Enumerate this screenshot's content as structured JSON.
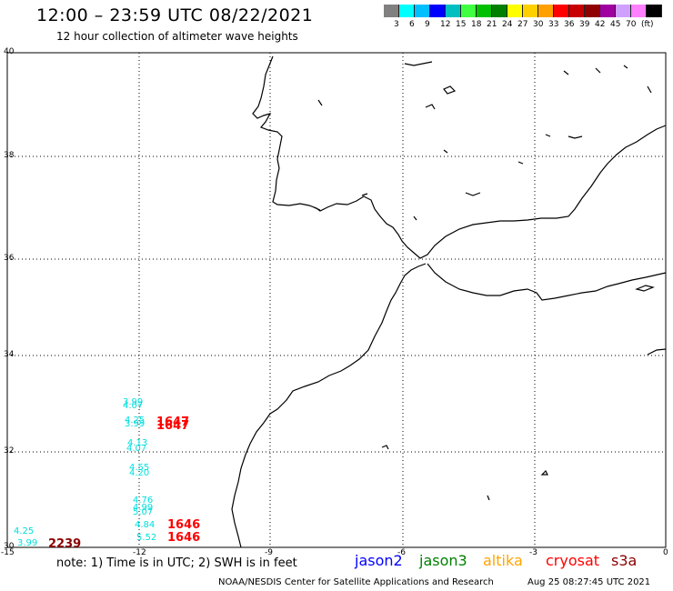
{
  "title": "12:00 – 23:59 UTC 08/22/2021",
  "subtitle": "12 hour collection of altimeter wave heights",
  "colorbar": {
    "colors": [
      "#808080",
      "#00ffff",
      "#00bfff",
      "#0000ff",
      "#00bfbf",
      "#40ff40",
      "#00c000",
      "#008000",
      "#ffff00",
      "#ffd000",
      "#ffa000",
      "#ff0000",
      "#c80000",
      "#900000",
      "#a000a0",
      "#d0a0ff",
      "#ff80ff",
      "#000000"
    ],
    "labels": [
      "3",
      "6",
      "9",
      "12",
      "15",
      "18",
      "21",
      "24",
      "27",
      "30",
      "33",
      "36",
      "39",
      "42",
      "45",
      "70",
      "(ft)"
    ]
  },
  "axes": {
    "lat_labels": [
      "40",
      "38",
      "36",
      "34",
      "32",
      "30"
    ],
    "lon_labels": [
      "-15",
      "-12",
      "-9",
      "-6",
      "-3",
      "0"
    ]
  },
  "observations": [
    {
      "text": "3.99",
      "color": "#00dede",
      "class": "cyan-a"
    },
    {
      "text": "4.07",
      "color": "#00dede",
      "class": "cyan-b"
    },
    {
      "text": "4.25",
      "color": "#00dede",
      "class": "cyan-c"
    },
    {
      "text": "3.99",
      "color": "#00dede",
      "class": "cyan-d"
    },
    {
      "text": "1647",
      "color": "#ff0000",
      "class": "red-a"
    },
    {
      "text": "1647",
      "color": "#ff0000",
      "class": "red-b"
    },
    {
      "text": "4.13",
      "color": "#00dede",
      "class": "cyan-e"
    },
    {
      "text": "4.07",
      "color": "#00dede",
      "class": "cyan-f"
    },
    {
      "text": "4.55",
      "color": "#00dede",
      "class": "cyan-g"
    },
    {
      "text": "4.20",
      "color": "#00dede",
      "class": "cyan-h"
    },
    {
      "text": "4.76",
      "color": "#00dede",
      "class": "cyan-i"
    },
    {
      "text": "4.99",
      "color": "#00dede",
      "class": "cyan-j"
    },
    {
      "text": "5.07",
      "color": "#00dede",
      "class": "cyan-k"
    },
    {
      "text": "4.84",
      "color": "#00dede",
      "class": "cyan-l"
    },
    {
      "text": "1646",
      "color": "#ff0000",
      "class": "red-c"
    },
    {
      "text": "5.52",
      "color": "#00dede",
      "class": "cyan-m"
    },
    {
      "text": "1646",
      "color": "#ff0000",
      "class": "red-d"
    },
    {
      "text": "4.25",
      "color": "#00dede",
      "class": "cyan-n"
    },
    {
      "text": "3.99",
      "color": "#00dede",
      "class": "cyan-o"
    },
    {
      "text": "2239",
      "color": "#8b0000",
      "class": "dred-a"
    }
  ],
  "note": "note: 1) Time is in UTC; 2) SWH is in feet",
  "legend": [
    {
      "label": "jason2",
      "color": "#0000ff"
    },
    {
      "label": "jason3",
      "color": "#008000"
    },
    {
      "label": "altika",
      "color": "#ffa500"
    },
    {
      "label": "cryosat",
      "color": "#ff0000"
    },
    {
      "label": "s3a",
      "color": "#8b0000"
    }
  ],
  "footer": {
    "left": "NOAA/NESDIS Center for Satellite Applications and Research",
    "right": "Aug 25 08:27:45 UTC 2021"
  }
}
